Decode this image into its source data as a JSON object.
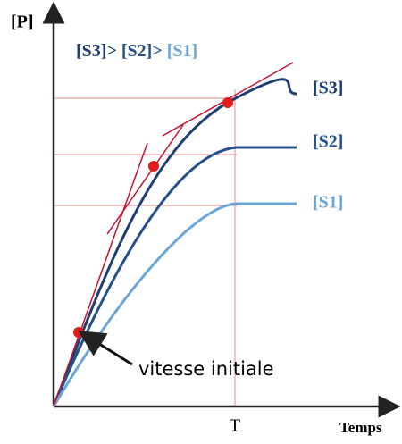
{
  "axes": {
    "y_label": "[P]",
    "x_label": "Temps",
    "t_label": "T"
  },
  "legend": [
    {
      "text": "[S3]>",
      "color": "#1f3f73"
    },
    {
      "text": "[S2]>",
      "color": "#24508c"
    },
    {
      "text": "[S1]",
      "color": "#6aa6d8"
    }
  ],
  "curves": [
    {
      "label": "[S3]",
      "color": "#1f3f73"
    },
    {
      "label": "[S2]",
      "color": "#24508c"
    },
    {
      "label": "[S1]",
      "color": "#6aa6d8"
    }
  ],
  "annotation": "vitesse initiale"
}
